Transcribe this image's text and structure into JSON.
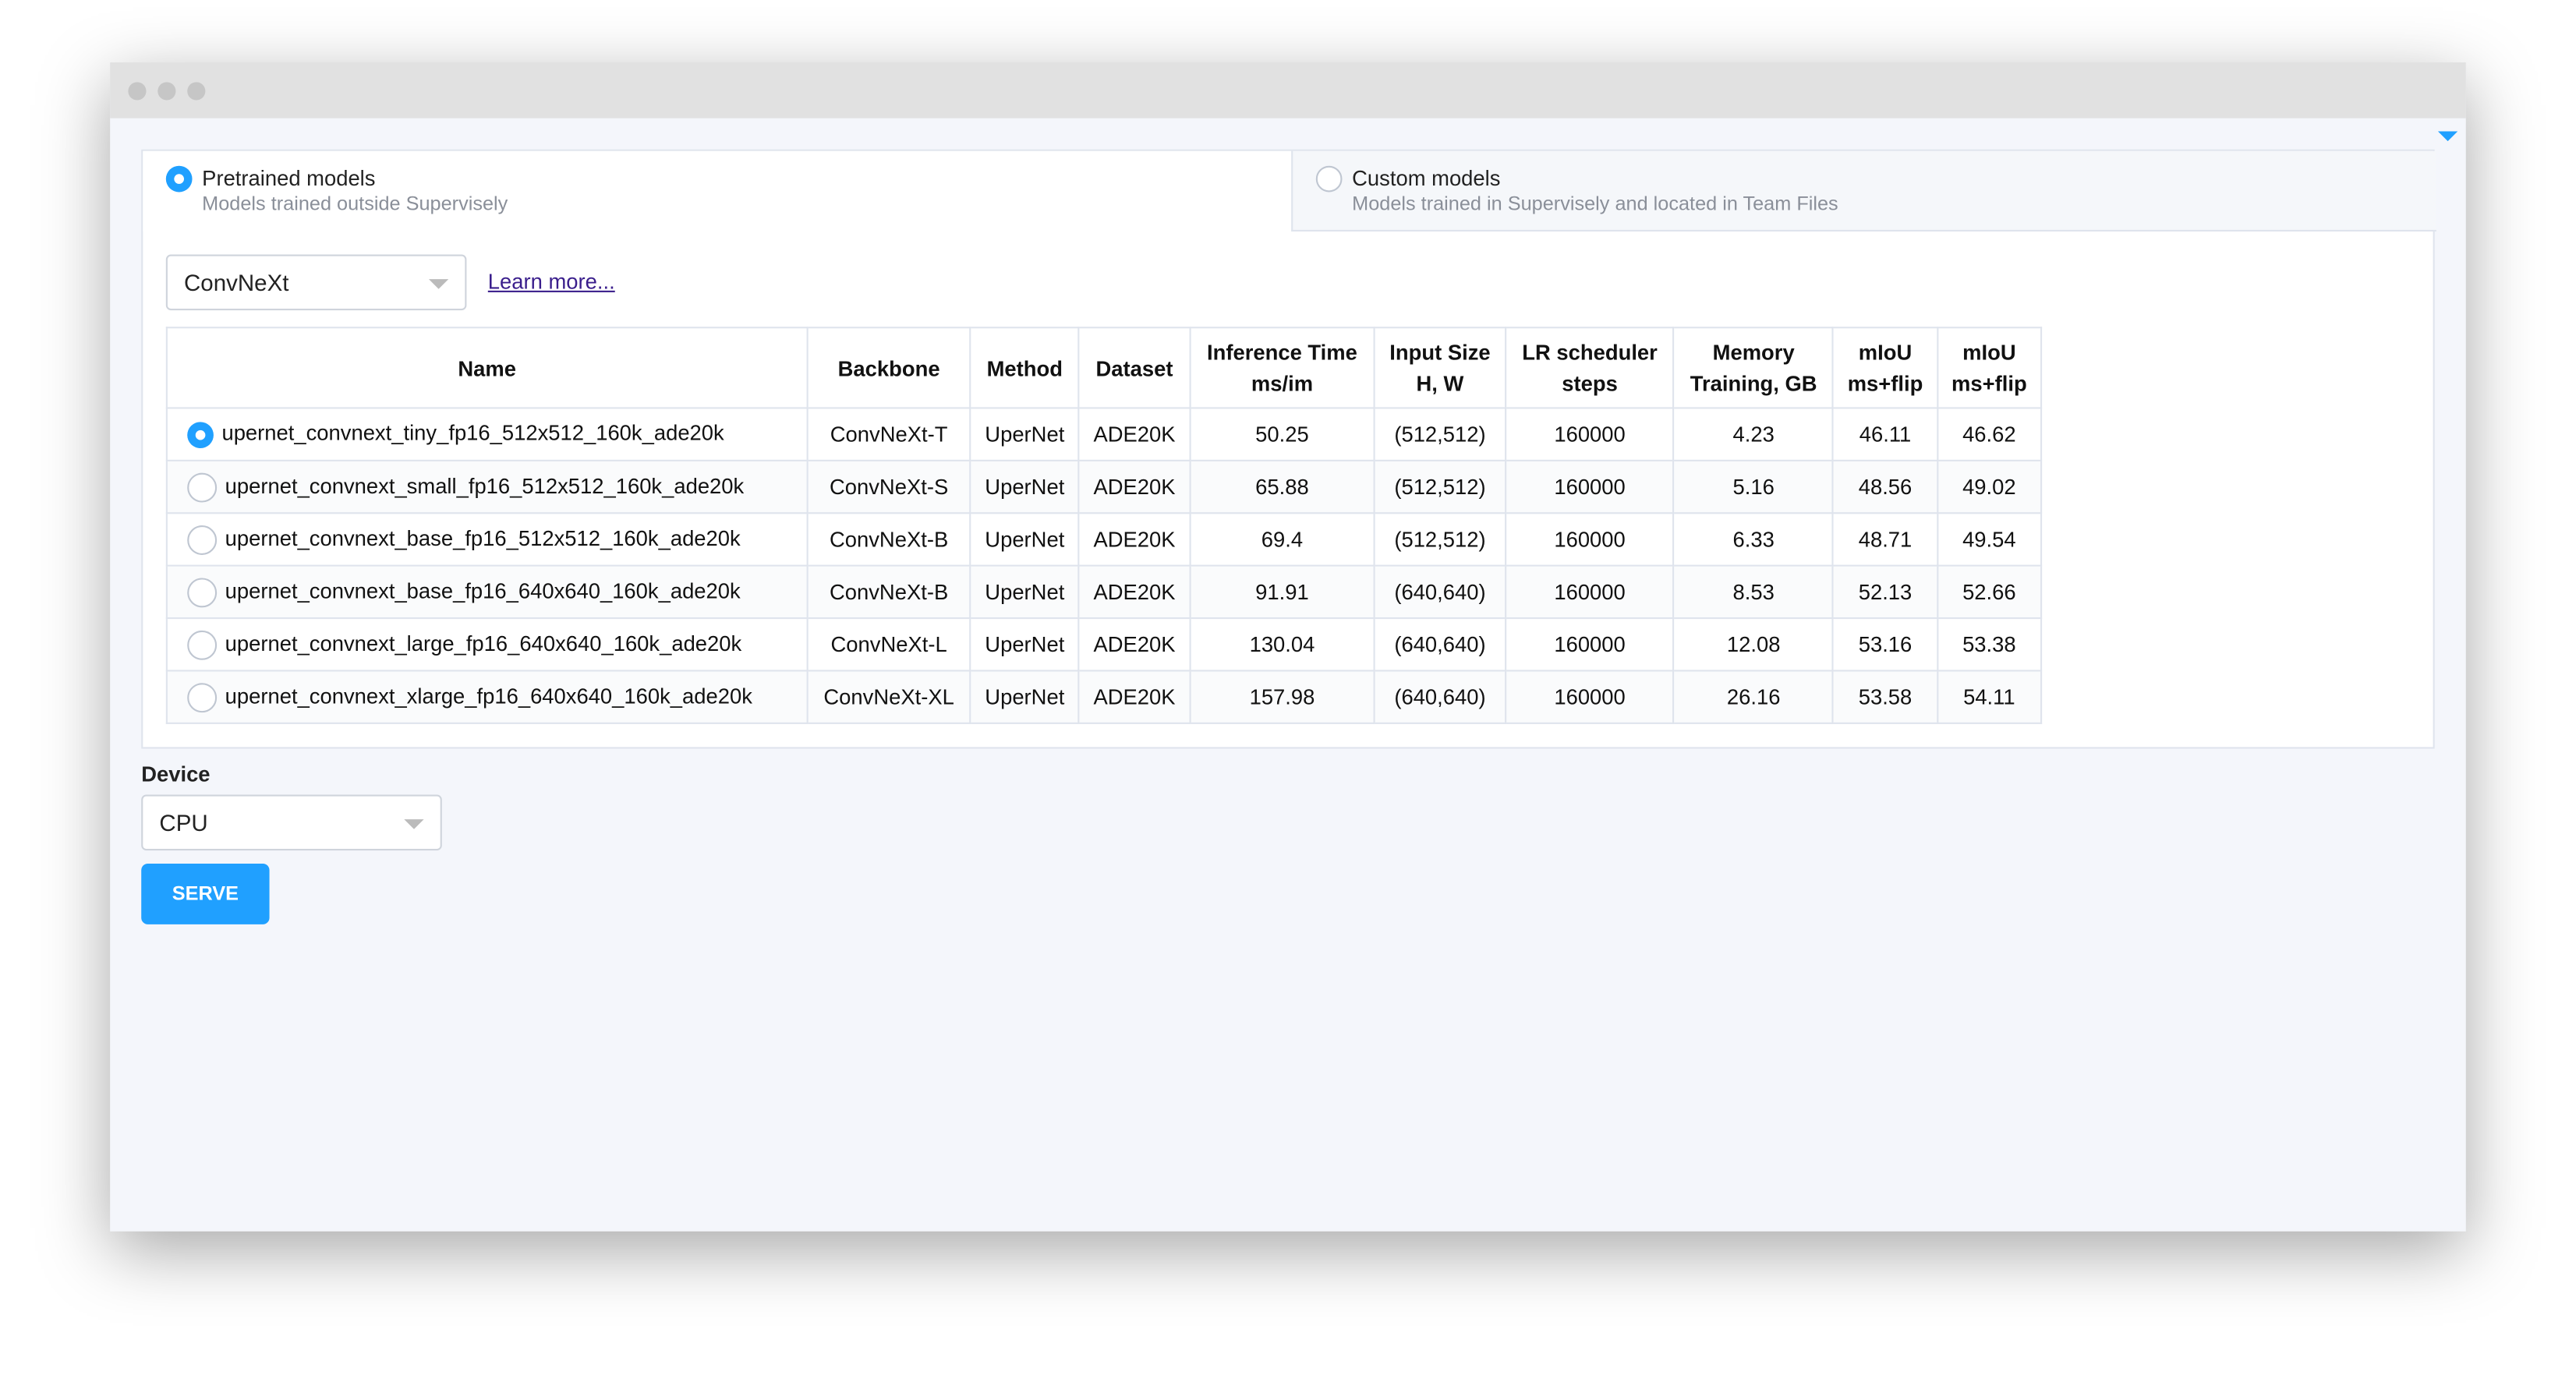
{
  "tabs": [
    {
      "title": "Pretrained models",
      "subtitle": "Models trained outside Supervisely",
      "selected": true
    },
    {
      "title": "Custom models",
      "subtitle": "Models trained in Supervisely and located in Team Files",
      "selected": false
    }
  ],
  "architecture_select": "ConvNeXt",
  "learn_more": "Learn more...",
  "table": {
    "columns": [
      [
        "Name"
      ],
      [
        "Backbone"
      ],
      [
        "Method"
      ],
      [
        "Dataset"
      ],
      [
        "Inference Time",
        "ms/im"
      ],
      [
        "Input Size",
        "H, W"
      ],
      [
        "LR scheduler",
        "steps"
      ],
      [
        "Memory",
        "Training, GB"
      ],
      [
        "mIoU",
        "ms+flip"
      ],
      [
        "mIoU",
        "ms+flip"
      ]
    ],
    "selected_row": 0,
    "rows": [
      [
        "upernet_convnext_tiny_fp16_512x512_160k_ade20k",
        "ConvNeXt-T",
        "UperNet",
        "ADE20K",
        "50.25",
        "(512,512)",
        "160000",
        "4.23",
        "46.11",
        "46.62"
      ],
      [
        "upernet_convnext_small_fp16_512x512_160k_ade20k",
        "ConvNeXt-S",
        "UperNet",
        "ADE20K",
        "65.88",
        "(512,512)",
        "160000",
        "5.16",
        "48.56",
        "49.02"
      ],
      [
        "upernet_convnext_base_fp16_512x512_160k_ade20k",
        "ConvNeXt-B",
        "UperNet",
        "ADE20K",
        "69.4",
        "(512,512)",
        "160000",
        "6.33",
        "48.71",
        "49.54"
      ],
      [
        "upernet_convnext_base_fp16_640x640_160k_ade20k",
        "ConvNeXt-B",
        "UperNet",
        "ADE20K",
        "91.91",
        "(640,640)",
        "160000",
        "8.53",
        "52.13",
        "52.66"
      ],
      [
        "upernet_convnext_large_fp16_640x640_160k_ade20k",
        "ConvNeXt-L",
        "UperNet",
        "ADE20K",
        "130.04",
        "(640,640)",
        "160000",
        "12.08",
        "53.16",
        "53.38"
      ],
      [
        "upernet_convnext_xlarge_fp16_640x640_160k_ade20k",
        "ConvNeXt-XL",
        "UperNet",
        "ADE20K",
        "157.98",
        "(640,640)",
        "160000",
        "26.16",
        "53.58",
        "54.11"
      ]
    ]
  },
  "device": {
    "label": "Device",
    "value": "CPU"
  },
  "button": "SERVE"
}
